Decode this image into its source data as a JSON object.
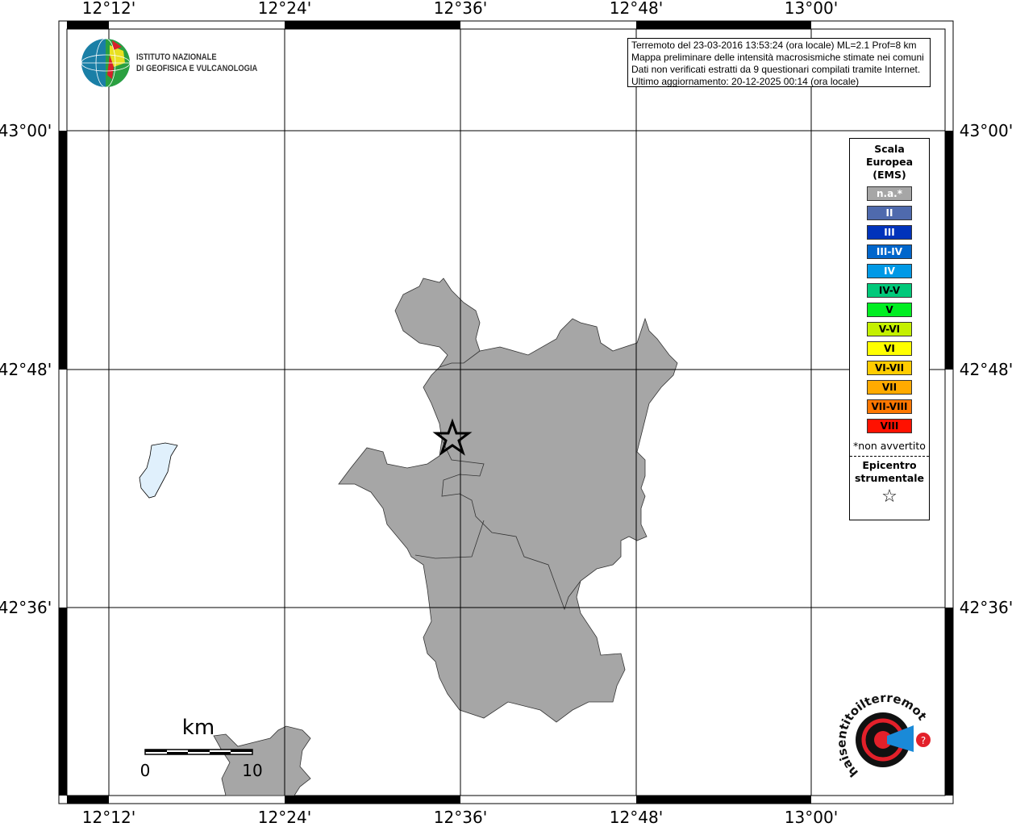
{
  "map": {
    "lon_labels": [
      "12°12'",
      "12°24'",
      "12°36'",
      "12°48'",
      "13°00'"
    ],
    "lat_labels": [
      "43°00'",
      "42°48'",
      "42°36'"
    ],
    "land_color": "#a6a6a6",
    "lake_color": "#e0f0fc"
  },
  "info_box": {
    "lines": [
      "Terremoto del 23-03-2016 13:53:24 (ora locale) ML=2.1 Prof=8 km",
      "Mappa preliminare delle intensità macrosismiche stimate nei comuni",
      "Dati non verificati estratti da 9 questionari compilati tramite Internet.",
      "Ultimo aggiornamento: 20-12-2025 00:14 (ora locale)"
    ]
  },
  "legend": {
    "title_lines": [
      "Scala",
      "Europea",
      "(EMS)"
    ],
    "items": [
      {
        "label": "n.a.*",
        "color": "#a6a6a6",
        "text_color": "#ffffff"
      },
      {
        "label": "II",
        "color": "#4f6aad",
        "text_color": "#ffffff"
      },
      {
        "label": "III",
        "color": "#0033bb",
        "text_color": "#ffffff"
      },
      {
        "label": "III-IV",
        "color": "#0066cc",
        "text_color": "#ffffff"
      },
      {
        "label": "IV",
        "color": "#0099e6",
        "text_color": "#ffffff"
      },
      {
        "label": "IV-V",
        "color": "#00c97a",
        "text_color": "#000000"
      },
      {
        "label": "V",
        "color": "#00ee22",
        "text_color": "#000000"
      },
      {
        "label": "V-VI",
        "color": "#c4f000",
        "text_color": "#000000"
      },
      {
        "label": "VI",
        "color": "#ffff00",
        "text_color": "#000000"
      },
      {
        "label": "VI-VII",
        "color": "#ffcc00",
        "text_color": "#000000"
      },
      {
        "label": "VII",
        "color": "#ffaa00",
        "text_color": "#000000"
      },
      {
        "label": "VII-VIII",
        "color": "#ff7700",
        "text_color": "#000000"
      },
      {
        "label": "VIII",
        "color": "#ff1100",
        "text_color": "#000000"
      }
    ],
    "note": "*non avvertito",
    "epicenter_lines": [
      "Epicentro",
      "strumentale"
    ],
    "epicenter_icon": "star-outline-icon"
  },
  "scale_bar": {
    "unit": "km",
    "start": "0",
    "end": "10"
  },
  "logos": {
    "ingv": [
      "ISTITUTO NAZIONALE",
      "DI GEOFISICA E VULCANOLOGIA"
    ],
    "hsit": "www.haisentitoilterremoto.it"
  }
}
